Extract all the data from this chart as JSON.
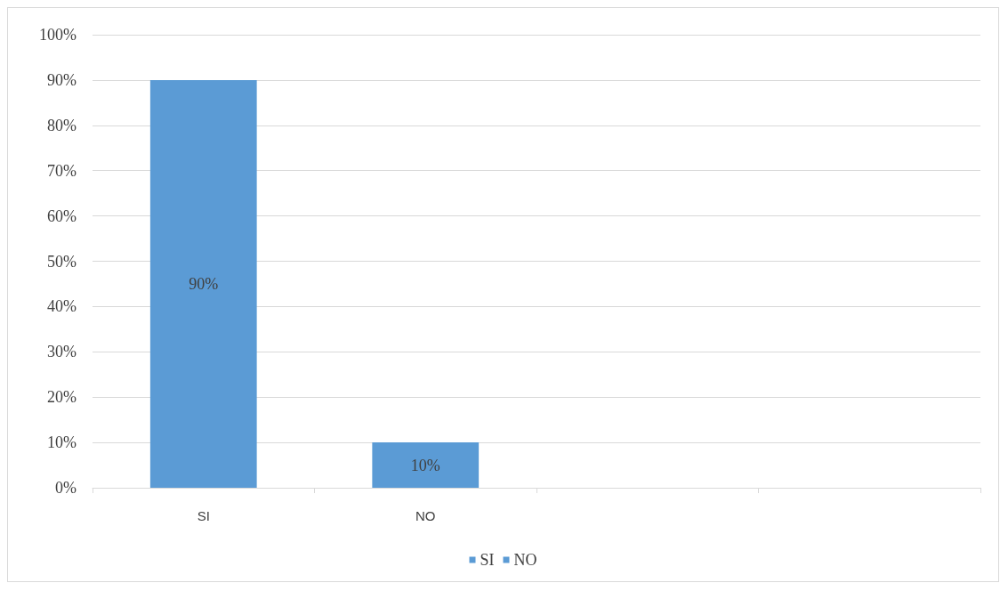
{
  "chart_data": {
    "type": "bar",
    "categories": [
      "SI",
      "NO",
      null,
      null
    ],
    "series": [
      {
        "name": "SI",
        "color": "#5b9bd5",
        "values": [
          90,
          null,
          null,
          null
        ],
        "value_labels": [
          "90%",
          null,
          null,
          null
        ]
      },
      {
        "name": "NO",
        "color": "#5b9bd5",
        "values": [
          null,
          10,
          null,
          null
        ],
        "value_labels": [
          null,
          "10%",
          null,
          null
        ]
      }
    ],
    "ylim": [
      0,
      100
    ],
    "yticks": [
      {
        "value": 0,
        "label": "0%"
      },
      {
        "value": 10,
        "label": "10%"
      },
      {
        "value": 20,
        "label": "20%"
      },
      {
        "value": 30,
        "label": "30%"
      },
      {
        "value": 40,
        "label": "40%"
      },
      {
        "value": 50,
        "label": "50%"
      },
      {
        "value": 60,
        "label": "60%"
      },
      {
        "value": 70,
        "label": "70%"
      },
      {
        "value": 80,
        "label": "80%"
      },
      {
        "value": 90,
        "label": "90%"
      },
      {
        "value": 100,
        "label": "100%"
      }
    ],
    "grid": "y",
    "legend": "bottom"
  }
}
